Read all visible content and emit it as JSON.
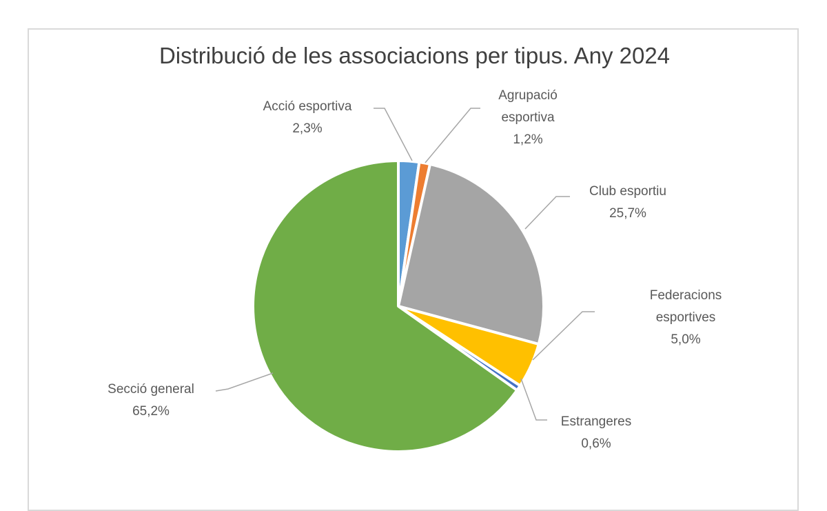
{
  "chart_data": {
    "type": "pie",
    "title": "Distribució de les associacions per tipus. Any 2024",
    "unit": "%",
    "decimal_separator": ",",
    "start_angle_deg": 0,
    "direction": "clockwise",
    "legend": "none",
    "labels_style": "callouts-with-leader-lines",
    "slices": [
      {
        "label": "Acció esportiva",
        "value": 2.3,
        "display": "2,3%",
        "color": "#5B9BD5"
      },
      {
        "label": "Agrupació esportiva",
        "value": 1.2,
        "display": "1,2%",
        "color": "#ED7D31"
      },
      {
        "label": "Club esportiu",
        "value": 25.7,
        "display": "25,7%",
        "color": "#A5A5A5"
      },
      {
        "label": "Federacions esportives",
        "value": 5.0,
        "display": "5,0%",
        "color": "#FFC000"
      },
      {
        "label": "Estrangeres",
        "value": 0.6,
        "display": "0,6%",
        "color": "#4472C4"
      },
      {
        "label": "Secció general",
        "value": 65.2,
        "display": "65,2%",
        "color": "#70AD47"
      }
    ],
    "colors": {
      "title": "#404040",
      "label_text": "#595959",
      "leader_line": "#A6A6A6",
      "slice_separator": "#FFFFFF",
      "chart_border": "#D9D9D9",
      "background": "#FFFFFF"
    }
  }
}
